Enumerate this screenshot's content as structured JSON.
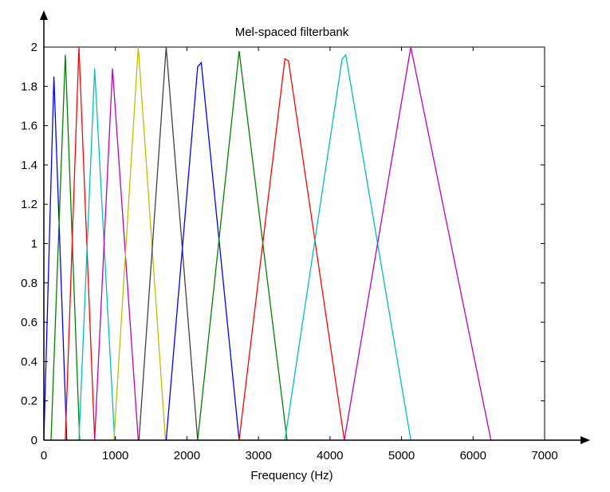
{
  "chart_data": {
    "type": "line",
    "title": "Mel-spaced filterbank",
    "xlabel": "Frequency (Hz)",
    "ylabel": "",
    "xlim": [
      0,
      7000
    ],
    "ylim": [
      0,
      2
    ],
    "xticks": [
      0,
      1000,
      2000,
      3000,
      4000,
      5000,
      6000,
      7000
    ],
    "yticks": [
      0,
      0.2,
      0.4,
      0.6,
      0.8,
      1,
      1.2,
      1.4,
      1.6,
      1.8,
      2
    ],
    "xtick_labels": [
      "0",
      "1000",
      "2000",
      "3000",
      "4000",
      "5000",
      "6000",
      "7000"
    ],
    "ytick_labels": [
      "0",
      "0.2",
      "0.4",
      "0.6",
      "0.8",
      "1",
      "1.2",
      "1.4",
      "1.6",
      "1.8",
      "2"
    ],
    "grid": false,
    "legend": "none",
    "series": [
      {
        "color": "#0000ff",
        "x": [
          0,
          140,
          320
        ],
        "y": [
          0,
          1.85,
          0
        ]
      },
      {
        "color": "#008000",
        "x": [
          100,
          300,
          500
        ],
        "y": [
          0,
          1.96,
          0
        ]
      },
      {
        "color": "#ff0000",
        "x": [
          300,
          490,
          710
        ],
        "y": [
          0,
          2.0,
          0
        ]
      },
      {
        "color": "#00bfbf",
        "x": [
          490,
          710,
          990
        ],
        "y": [
          0,
          1.89,
          0
        ]
      },
      {
        "color": "#bf00bf",
        "x": [
          710,
          960,
          1320
        ],
        "y": [
          0,
          1.89,
          0
        ]
      },
      {
        "color": "#bfbf00",
        "x": [
          980,
          1320,
          1700
        ],
        "y": [
          0,
          2.0,
          0
        ]
      },
      {
        "color": "#404040",
        "x": [
          1330,
          1710,
          2150
        ],
        "y": [
          0,
          2.0,
          0
        ]
      },
      {
        "color": "#0000ff",
        "x": [
          1710,
          2150,
          2200,
          2730
        ],
        "y": [
          0,
          1.9,
          1.92,
          0
        ]
      },
      {
        "color": "#008000",
        "x": [
          2150,
          2730,
          3400
        ],
        "y": [
          0,
          1.98,
          0
        ]
      },
      {
        "color": "#ff0000",
        "x": [
          2730,
          3370,
          3420,
          4200
        ],
        "y": [
          0,
          1.94,
          1.93,
          0
        ]
      },
      {
        "color": "#00bfbf",
        "x": [
          3370,
          4170,
          4220,
          5130
        ],
        "y": [
          0,
          1.94,
          1.96,
          0
        ]
      },
      {
        "color": "#bf00bf",
        "x": [
          4200,
          5130,
          6250
        ],
        "y": [
          0,
          2.0,
          0
        ]
      }
    ]
  }
}
